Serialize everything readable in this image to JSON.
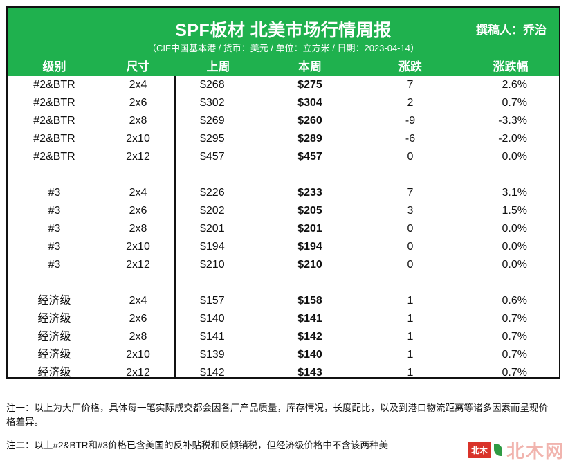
{
  "header": {
    "title": "SPF板材 北美市场行情周报",
    "author": "撰稿人：乔治",
    "subtitle": "（CIF中国基本港 / 货币：美元 / 单位：立方米 / 日期：2023-04-14）",
    "columns": [
      "级别",
      "尺寸",
      "上周",
      "本周",
      "涨跌",
      "涨跌幅"
    ],
    "accent_color": "#1fb14e"
  },
  "rows": [
    {
      "grade": "#2&BTR",
      "size": "2x4",
      "last": "$268",
      "this": "$275",
      "change": "7",
      "pct": "2.6%"
    },
    {
      "grade": "#2&BTR",
      "size": "2x6",
      "last": "$302",
      "this": "$304",
      "change": "2",
      "pct": "0.7%"
    },
    {
      "grade": "#2&BTR",
      "size": "2x8",
      "last": "$269",
      "this": "$260",
      "change": "-9",
      "pct": "-3.3%"
    },
    {
      "grade": "#2&BTR",
      "size": "2x10",
      "last": "$295",
      "this": "$289",
      "change": "-6",
      "pct": "-2.0%"
    },
    {
      "grade": "#2&BTR",
      "size": "2x12",
      "last": "$457",
      "this": "$457",
      "change": "0",
      "pct": "0.0%"
    },
    {
      "grade": "#3",
      "size": "2x4",
      "last": "$226",
      "this": "$233",
      "change": "7",
      "pct": "3.1%"
    },
    {
      "grade": "#3",
      "size": "2x6",
      "last": "$202",
      "this": "$205",
      "change": "3",
      "pct": "1.5%"
    },
    {
      "grade": "#3",
      "size": "2x8",
      "last": "$201",
      "this": "$201",
      "change": "0",
      "pct": "0.0%"
    },
    {
      "grade": "#3",
      "size": "2x10",
      "last": "$194",
      "this": "$194",
      "change": "0",
      "pct": "0.0%"
    },
    {
      "grade": "#3",
      "size": "2x12",
      "last": "$210",
      "this": "$210",
      "change": "0",
      "pct": "0.0%"
    },
    {
      "grade": "经济级",
      "size": "2x4",
      "last": "$157",
      "this": "$158",
      "change": "1",
      "pct": "0.6%"
    },
    {
      "grade": "经济级",
      "size": "2x6",
      "last": "$140",
      "this": "$141",
      "change": "1",
      "pct": "0.7%"
    },
    {
      "grade": "经济级",
      "size": "2x8",
      "last": "$141",
      "this": "$142",
      "change": "1",
      "pct": "0.7%"
    },
    {
      "grade": "经济级",
      "size": "2x10",
      "last": "$139",
      "this": "$140",
      "change": "1",
      "pct": "0.7%"
    },
    {
      "grade": "经济级",
      "size": "2x12",
      "last": "$142",
      "this": "$143",
      "change": "1",
      "pct": "0.7%"
    }
  ],
  "notes": {
    "note1": "注一：以上为大厂价格，具体每一笔实际成交都会因各厂产品质量，库存情况，长度配比，以及到港口物流距离等诸多因素而呈现价格差异。",
    "note2": "注二：以上#2&BTR和#3价格已含美国的反补贴税和反倾销税，但经济级价格中不含该两种美"
  },
  "watermark": {
    "badge": "北木",
    "text": "北木网"
  }
}
